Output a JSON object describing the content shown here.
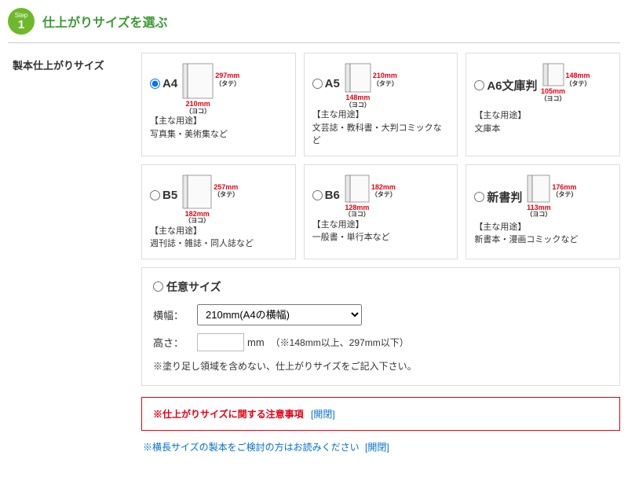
{
  "step": {
    "word": "Step",
    "number": "1",
    "title": "仕上がりサイズを選ぶ"
  },
  "formLabel": "製本仕上がりサイズ",
  "colors": {
    "accent": "#6eb92b",
    "titleText": "#3d9b35",
    "dimension": "#e60012",
    "link": "#0070d0",
    "border": "#dddddd",
    "noticeBorder": "#e60012"
  },
  "sizes": [
    {
      "id": "a4",
      "name": "A4",
      "selected": true,
      "height_mm": "297mm",
      "width_mm": "210mm",
      "height_label": "（タテ）",
      "width_label": "（ヨコ）",
      "book_w": 32,
      "book_h": 44,
      "usage_title": "【主な用途】",
      "usage_text": "写真集・美術集など"
    },
    {
      "id": "a5",
      "name": "A5",
      "selected": false,
      "height_mm": "210mm",
      "width_mm": "148mm",
      "height_label": "（タテ）",
      "width_label": "（ヨコ）",
      "book_w": 26,
      "book_h": 36,
      "usage_title": "【主な用途】",
      "usage_text": "文芸誌・教科書・大判コミックなど"
    },
    {
      "id": "a6",
      "name": "A6文庫判",
      "selected": false,
      "height_mm": "148mm",
      "width_mm": "105mm",
      "height_label": "（タテ）",
      "width_label": "（ヨコ）",
      "book_w": 20,
      "book_h": 28,
      "usage_title": "【主な用途】",
      "usage_text": "文庫本"
    },
    {
      "id": "b5",
      "name": "B5",
      "selected": false,
      "height_mm": "257mm",
      "width_mm": "182mm",
      "height_label": "（タテ）",
      "width_label": "（ヨコ）",
      "book_w": 30,
      "book_h": 42,
      "usage_title": "【主な用途】",
      "usage_text": "週刊誌・雑誌・同人誌など"
    },
    {
      "id": "b6",
      "name": "B6",
      "selected": false,
      "height_mm": "182mm",
      "width_mm": "128mm",
      "height_label": "（タテ）",
      "width_label": "（ヨコ）",
      "book_w": 24,
      "book_h": 34,
      "usage_title": "【主な用途】",
      "usage_text": "一般書・単行本など"
    },
    {
      "id": "shinsho",
      "name": "新書判",
      "selected": false,
      "height_mm": "176mm",
      "width_mm": "113mm",
      "height_label": "（タテ）",
      "width_label": "（ヨコ）",
      "book_w": 22,
      "book_h": 34,
      "usage_title": "【主な用途】",
      "usage_text": "新書本・漫画コミックなど"
    }
  ],
  "custom": {
    "name": "任意サイズ",
    "widthLabel": "横幅：",
    "heightLabel": "高さ：",
    "widthOptions": [
      "210mm(A4の横幅)"
    ],
    "widthSelected": "210mm(A4の横幅)",
    "heightValue": "",
    "heightUnit": "mm",
    "heightHint": "（※148mm以上、297mm以下）",
    "note": "※塗り足し領域を含めない、仕上がりサイズをご記入下さい。"
  },
  "notice": {
    "text": "※仕上がりサイズに関する注意事項",
    "toggle": "[開閉]"
  },
  "landscapeNote": {
    "text": "※横長サイズの製本をご検討の方はお読みください",
    "toggle": "[開閉]"
  }
}
